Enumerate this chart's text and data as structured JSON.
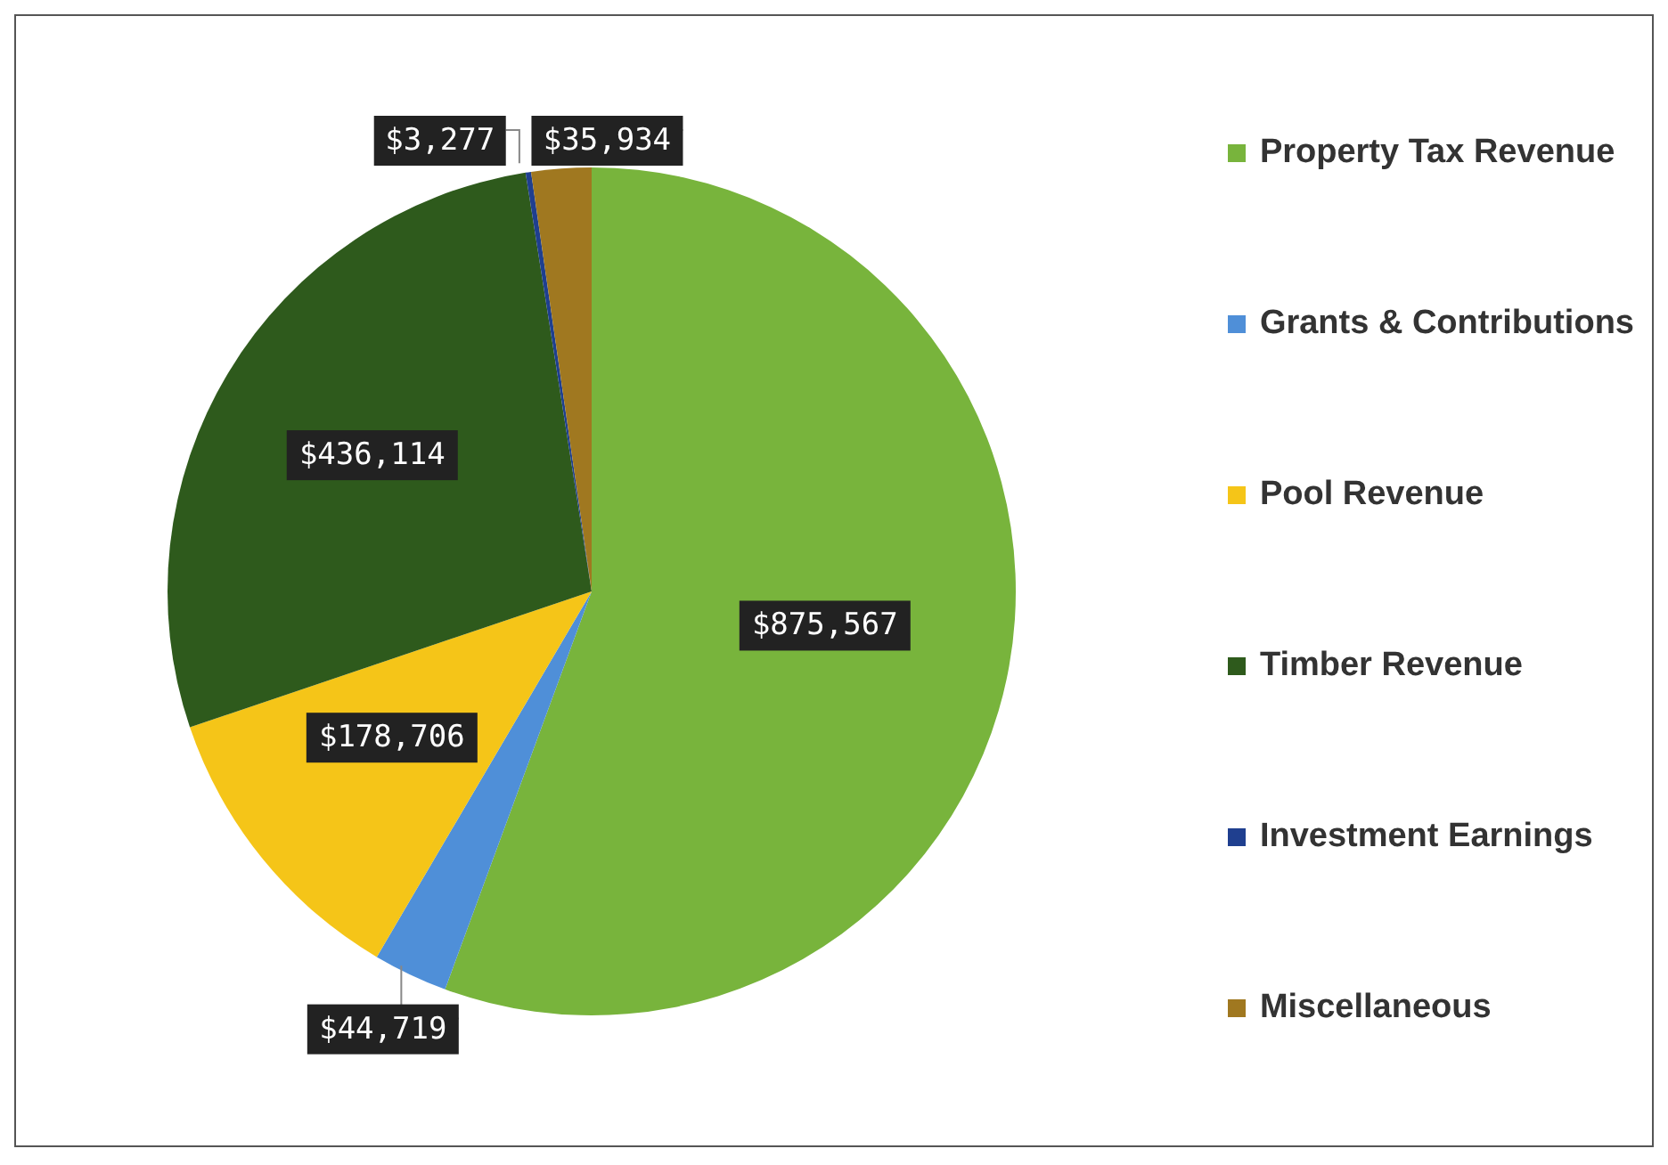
{
  "chart_data": {
    "type": "pie",
    "categories": [
      "Property Tax Revenue",
      "Grants & Contributions",
      "Pool Revenue",
      "Timber Revenue",
      "Investment Earnings",
      "Miscellaneous"
    ],
    "values": [
      875567,
      44719,
      178706,
      436114,
      3277,
      35934
    ],
    "value_labels": [
      "$875,567",
      "$44,719",
      "$178,706",
      "$436,114",
      "$3,277",
      "$35,934"
    ],
    "colors": [
      "#78b43c",
      "#4f8fd8",
      "#f5c518",
      "#2e5a1c",
      "#1f3f8f",
      "#a07820"
    ],
    "legend": "right"
  }
}
